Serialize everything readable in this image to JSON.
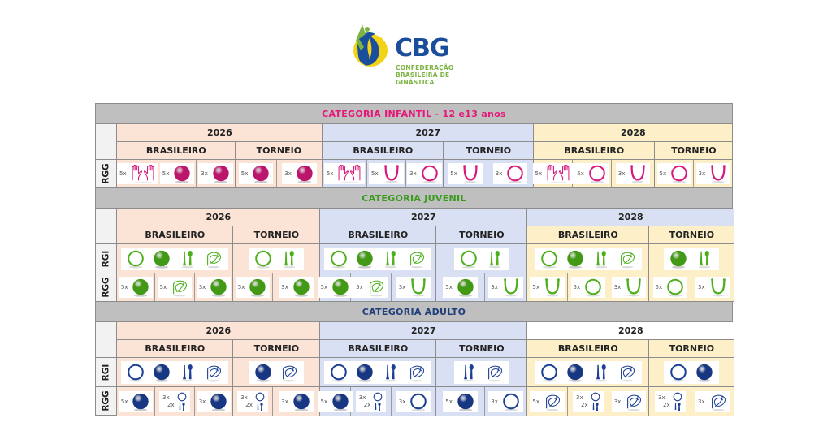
{
  "logo": {
    "name": "CBG",
    "subtitle_lines": [
      "CONFEDERAÇÃO",
      "BRASILEIRA DE",
      "GINÁSTICA"
    ],
    "colors": {
      "blue": "#1a4e9c",
      "yellow": "#f2d318",
      "green": "#7cb342"
    }
  },
  "colors": {
    "band": "#bfbfbf",
    "year_2026": "#fbe3d6",
    "year_2027": "#dae0f3",
    "year_2028": "#fdf0c8",
    "infantil_title": "#e6177a",
    "juvenil_title": "#3a9a1c",
    "adulto_title": "#1f3f7a",
    "apparatus_infantil": "#d6197c",
    "apparatus_juvenil": "#4caf1a",
    "apparatus_adulto": "#1b3f94"
  },
  "sections": [
    {
      "id": "infantil",
      "title": "CATEGORIA INFANTIL - 12 e13 anos",
      "years": [
        {
          "year": "2026",
          "events": [
            {
              "name": "BRASILEIRO",
              "RGG": [
                {
                  "mult": "5x",
                  "app": "hands"
                },
                {
                  "mult": "5x",
                  "app": "ball"
                },
                {
                  "mult": "3x",
                  "app": "ball"
                }
              ]
            },
            {
              "name": "TORNEIO",
              "RGG": [
                {
                  "mult": "5x",
                  "app": "ball"
                },
                {
                  "mult": "3x",
                  "app": "ball"
                }
              ]
            }
          ]
        },
        {
          "year": "2027",
          "events": [
            {
              "name": "BRASILEIRO",
              "RGG": [
                {
                  "mult": "5x",
                  "app": "hands"
                },
                {
                  "mult": "5x",
                  "app": "rope"
                },
                {
                  "mult": "3x",
                  "app": "hoop"
                }
              ]
            },
            {
              "name": "TORNEIO",
              "RGG": [
                {
                  "mult": "5x",
                  "app": "rope"
                },
                {
                  "mult": "3x",
                  "app": "hoop"
                }
              ]
            }
          ]
        },
        {
          "year": "2028",
          "events": [
            {
              "name": "BRASILEIRO",
              "RGG": [
                {
                  "mult": "5x",
                  "app": "hands"
                },
                {
                  "mult": "5x",
                  "app": "hoop"
                },
                {
                  "mult": "3x",
                  "app": "rope"
                }
              ]
            },
            {
              "name": "TORNEIO",
              "RGG": [
                {
                  "mult": "5x",
                  "app": "hoop"
                },
                {
                  "mult": "3x",
                  "app": "rope"
                }
              ]
            }
          ]
        }
      ],
      "row_labels": [
        "RGG"
      ]
    },
    {
      "id": "juvenil",
      "title": "CATEGORIA JUVENIL",
      "years": [
        {
          "year": "2026",
          "events": [
            {
              "name": "BRASILEIRO",
              "RGI": [
                "hoop",
                "ball",
                "clubs",
                "ribbon"
              ],
              "RGG": [
                {
                  "mult": "5x",
                  "app": "ball"
                },
                {
                  "mult": "5x",
                  "app": "ribbon"
                },
                {
                  "mult": "3x",
                  "app": "ball"
                }
              ]
            },
            {
              "name": "TORNEIO",
              "RGI": [
                "hoop",
                "clubs"
              ],
              "RGG": [
                {
                  "mult": "5x",
                  "app": "ball"
                },
                {
                  "mult": "3x",
                  "app": "ball"
                }
              ]
            }
          ]
        },
        {
          "year": "2027",
          "events": [
            {
              "name": "BRASILEIRO",
              "RGI": [
                "hoop",
                "ball",
                "clubs",
                "ribbon"
              ],
              "RGG": [
                {
                  "mult": "5x",
                  "app": "ball"
                },
                {
                  "mult": "5x",
                  "app": "ribbon"
                },
                {
                  "mult": "3x",
                  "app": "rope"
                }
              ]
            },
            {
              "name": "TORNEIO",
              "RGI": [
                "hoop",
                "clubs"
              ],
              "RGG": [
                {
                  "mult": "5x",
                  "app": "ball"
                },
                {
                  "mult": "3x",
                  "app": "rope"
                }
              ]
            }
          ]
        },
        {
          "year": "2028",
          "events": [
            {
              "name": "BRASILEIRO",
              "RGI": [
                "hoop",
                "ball",
                "clubs",
                "ribbon"
              ],
              "RGG": [
                {
                  "mult": "5x",
                  "app": "rope"
                },
                {
                  "mult": "5x",
                  "app": "hoop"
                },
                {
                  "mult": "3x",
                  "app": "rope"
                }
              ]
            },
            {
              "name": "TORNEIO",
              "RGI": [
                "ball",
                "clubs"
              ],
              "RGG": [
                {
                  "mult": "5x",
                  "app": "hoop"
                },
                {
                  "mult": "3x",
                  "app": "rope"
                }
              ]
            }
          ]
        }
      ],
      "row_labels": [
        "RGI",
        "RGG"
      ]
    },
    {
      "id": "adulto",
      "title": "CATEGORIA ADULTO",
      "years": [
        {
          "year": "2026",
          "events": [
            {
              "name": "BRASILEIRO",
              "RGI": [
                "hoop",
                "ball",
                "clubs",
                "ribbon"
              ],
              "RGG": [
                {
                  "mult": "5x",
                  "app": "ball"
                },
                {
                  "mult": "3x/2x",
                  "app": "hoop+clubs"
                },
                {
                  "mult": "3x",
                  "app": "ball"
                }
              ]
            },
            {
              "name": "TORNEIO",
              "RGI": [
                "ball",
                "ribbon"
              ],
              "RGG": [
                {
                  "mult": "3x/2x",
                  "app": "hoop+clubs"
                },
                {
                  "mult": "3x",
                  "app": "ball"
                }
              ]
            }
          ]
        },
        {
          "year": "2027",
          "events": [
            {
              "name": "BRASILEIRO",
              "RGI": [
                "hoop",
                "ball",
                "clubs",
                "ribbon"
              ],
              "RGG": [
                {
                  "mult": "5x",
                  "app": "ball"
                },
                {
                  "mult": "3x/2x",
                  "app": "hoop+clubs"
                },
                {
                  "mult": "3x",
                  "app": "hoop"
                }
              ]
            },
            {
              "name": "TORNEIO",
              "RGI": [
                "clubs",
                "ribbon"
              ],
              "RGG": [
                {
                  "mult": "5x",
                  "app": "ball"
                },
                {
                  "mult": "3x",
                  "app": "hoop"
                }
              ]
            }
          ]
        },
        {
          "year": "2028",
          "events": [
            {
              "name": "BRASILEIRO",
              "RGI": [
                "hoop",
                "ball",
                "clubs",
                "ribbon"
              ],
              "RGG": [
                {
                  "mult": "5x",
                  "app": "ribbon"
                },
                {
                  "mult": "3x/2x",
                  "app": "hoop+clubs"
                },
                {
                  "mult": "3x",
                  "app": "ribbon"
                }
              ]
            },
            {
              "name": "TORNEIO",
              "RGI": [
                "hoop",
                "ball"
              ],
              "RGG": [
                {
                  "mult": "3x/2x",
                  "app": "hoop+clubs"
                },
                {
                  "mult": "3x",
                  "app": "ribbon"
                }
              ]
            }
          ]
        }
      ],
      "row_labels": [
        "RGI",
        "RGG"
      ]
    }
  ]
}
